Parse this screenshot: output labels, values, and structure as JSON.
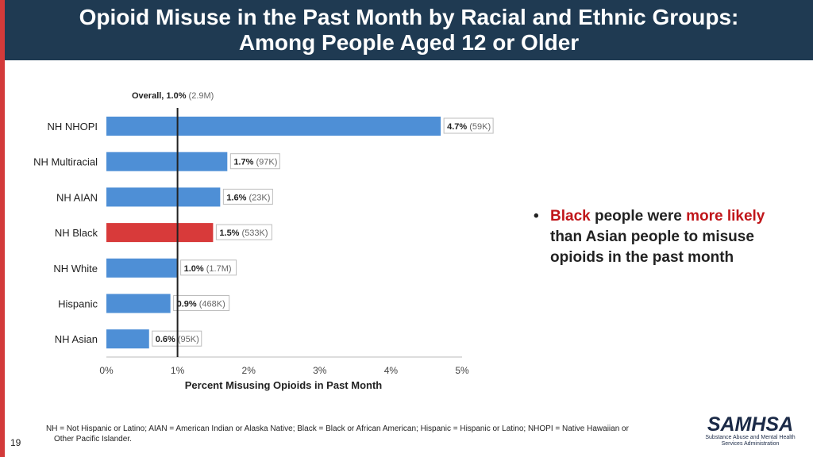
{
  "header": {
    "title_line1": "Opioid Misuse in the Past Month by Racial and Ethnic Groups:",
    "title_line2": "Among People Aged 12 or Older"
  },
  "chart_data": {
    "type": "bar",
    "orientation": "horizontal",
    "overall_label_value": "Overall, 1.0%",
    "overall_label_count": "(2.9M)",
    "overall_value": 1.0,
    "categories": [
      "NH NHOPI",
      "NH Multiracial",
      "NH AIAN",
      "NH Black",
      "NH White",
      "Hispanic",
      "NH Asian"
    ],
    "values": [
      4.7,
      1.7,
      1.6,
      1.5,
      1.0,
      0.9,
      0.6
    ],
    "value_labels": [
      "4.7%",
      "1.7%",
      "1.6%",
      "1.5%",
      "1.0%",
      "0.9%",
      "0.6%"
    ],
    "count_labels": [
      "(59K)",
      "(97K)",
      "(23K)",
      "(533K)",
      "(1.7M)",
      "(468K)",
      "(95K)"
    ],
    "highlight": "NH Black",
    "colors": {
      "bar": "#4e8fd6",
      "highlight": "#d83a3a",
      "overall_line": "#222222"
    },
    "xlim": [
      0,
      5
    ],
    "xticks": [
      "0%",
      "1%",
      "2%",
      "3%",
      "4%",
      "5%"
    ],
    "xlabel": "Percent Misusing Opioids in Past Month",
    "ylabel": "",
    "grid": false
  },
  "bullet": {
    "symbol": "•",
    "part1": "Black",
    "part2": " people were ",
    "part3": "more likely",
    "part4": " than Asian people to misuse opioids in the past month"
  },
  "footnote": {
    "line1": "NH = Not Hispanic or Latino; AIAN = American Indian or Alaska Native; Black = Black or African American; Hispanic = Hispanic or Latino; NHOPI = Native Hawaiian or",
    "line2": "Other Pacific Islander."
  },
  "page_number": "19",
  "logo": {
    "name": "SAMHSA",
    "tagline1": "Substance Abuse and Mental Health",
    "tagline2": "Services Administration"
  }
}
